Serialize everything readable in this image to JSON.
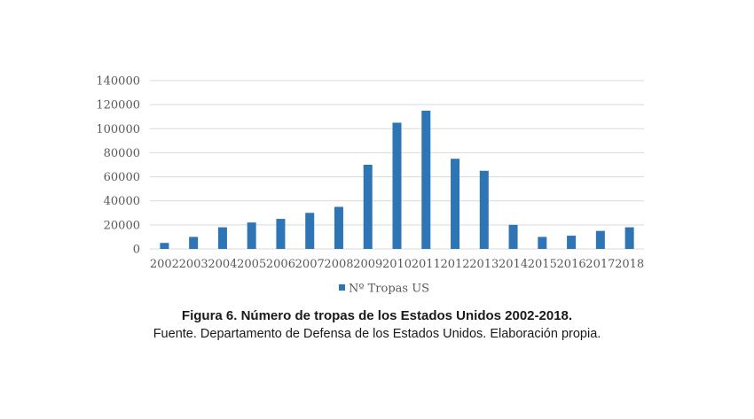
{
  "chart_data": {
    "type": "bar",
    "categories": [
      "2002",
      "2003",
      "2004",
      "2005",
      "2006",
      "2007",
      "2008",
      "2009",
      "2010",
      "2011",
      "2012",
      "2013",
      "2014",
      "2015",
      "2016",
      "2017",
      "2018"
    ],
    "series": [
      {
        "name": "Nº Tropas US",
        "values": [
          5000,
          10000,
          18000,
          22000,
          25000,
          30000,
          35000,
          70000,
          105000,
          115000,
          75000,
          65000,
          20000,
          10000,
          11000,
          15000,
          18000
        ]
      }
    ],
    "ylim": [
      0,
      140000
    ],
    "yticks": [
      0,
      20000,
      40000,
      60000,
      80000,
      100000,
      120000,
      140000
    ],
    "grid": true,
    "legend": "bottom",
    "bar_color": "#2E75B6",
    "grid_color": "#d9d9d9"
  },
  "caption": {
    "title": "Figura 6. Número de tropas de los Estados Unidos 2002-2018.",
    "source": "Fuente. Departamento de Defensa de los Estados Unidos. Elaboración propia."
  }
}
